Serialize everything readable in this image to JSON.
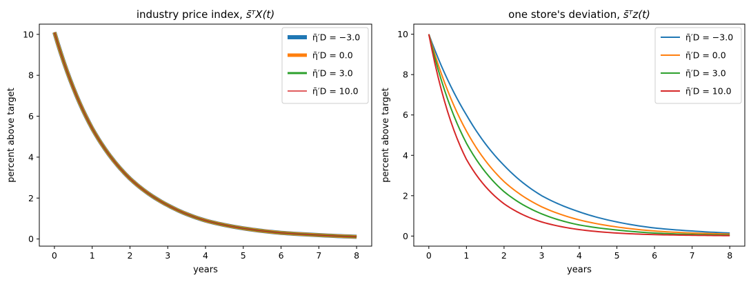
{
  "chart_data": [
    {
      "type": "line",
      "title_main": "industry price index, ",
      "title_math": "s̄ᵀX(t)",
      "xlabel": "years",
      "ylabel": "percent above target",
      "xlim": [
        -0.4,
        8.4
      ],
      "ylim": [
        -0.35,
        10.5
      ],
      "x_ticks": [
        0,
        1,
        2,
        3,
        4,
        5,
        6,
        7,
        8
      ],
      "y_ticks": [
        0,
        2,
        4,
        6,
        8,
        10
      ],
      "legend_position": "top-right",
      "grid": false,
      "series": [
        {
          "name": "η̄′D = −3.0",
          "color": "#1f77b4",
          "width": 6,
          "x": [
            0,
            1,
            2,
            3,
            4,
            5,
            6,
            7,
            8
          ],
          "y": [
            10.1,
            5.4,
            2.95,
            1.65,
            0.9,
            0.52,
            0.3,
            0.19,
            0.11
          ]
        },
        {
          "name": "η̄′D = 0.0",
          "color": "#ff7f0e",
          "width": 5,
          "x": [
            0,
            1,
            2,
            3,
            4,
            5,
            6,
            7,
            8
          ],
          "y": [
            10.1,
            5.4,
            2.95,
            1.65,
            0.9,
            0.52,
            0.3,
            0.19,
            0.11
          ]
        },
        {
          "name": "η̄′D = 3.0",
          "color": "#2ca02c",
          "width": 3,
          "x": [
            0,
            1,
            2,
            3,
            4,
            5,
            6,
            7,
            8
          ],
          "y": [
            10.1,
            5.4,
            2.95,
            1.65,
            0.9,
            0.52,
            0.3,
            0.19,
            0.11
          ]
        },
        {
          "name": "η̄′D = 10.0",
          "color": "#d62728",
          "width": 1.5,
          "x": [
            0,
            1,
            2,
            3,
            4,
            5,
            6,
            7,
            8
          ],
          "y": [
            10.1,
            5.4,
            2.95,
            1.65,
            0.9,
            0.52,
            0.3,
            0.19,
            0.11
          ]
        }
      ]
    },
    {
      "type": "line",
      "title_main": "one store's deviation, ",
      "title_math": "s̄ᵀz(t)",
      "xlabel": "years",
      "ylabel": "percent above target",
      "xlim": [
        -0.4,
        8.4
      ],
      "ylim": [
        -0.5,
        10.5
      ],
      "x_ticks": [
        0,
        1,
        2,
        3,
        4,
        5,
        6,
        7,
        8
      ],
      "y_ticks": [
        0,
        2,
        4,
        6,
        8,
        10
      ],
      "legend_position": "top-right",
      "grid": false,
      "series": [
        {
          "name": "η̄′D = −3.0",
          "color": "#1f77b4",
          "width": 2,
          "x": [
            0,
            1,
            2,
            3,
            4,
            5,
            6,
            7,
            8
          ],
          "y": [
            10,
            6.0,
            3.5,
            2.0,
            1.2,
            0.7,
            0.4,
            0.25,
            0.15
          ]
        },
        {
          "name": "η̄′D = 0.0",
          "color": "#ff7f0e",
          "width": 2,
          "x": [
            0,
            1,
            2,
            3,
            4,
            5,
            6,
            7,
            8
          ],
          "y": [
            10,
            5.2,
            2.7,
            1.45,
            0.8,
            0.45,
            0.25,
            0.15,
            0.1
          ]
        },
        {
          "name": "η̄′D = 3.0",
          "color": "#2ca02c",
          "width": 2,
          "x": [
            0,
            1,
            2,
            3,
            4,
            5,
            6,
            7,
            8
          ],
          "y": [
            10,
            4.6,
            2.2,
            1.1,
            0.55,
            0.3,
            0.15,
            0.08,
            0.05
          ]
        },
        {
          "name": "η̄′D = 10.0",
          "color": "#d62728",
          "width": 2,
          "x": [
            0,
            1,
            2,
            3,
            4,
            5,
            6,
            7,
            8
          ],
          "y": [
            10,
            3.8,
            1.6,
            0.7,
            0.32,
            0.15,
            0.07,
            0.04,
            0.02
          ]
        }
      ]
    }
  ]
}
